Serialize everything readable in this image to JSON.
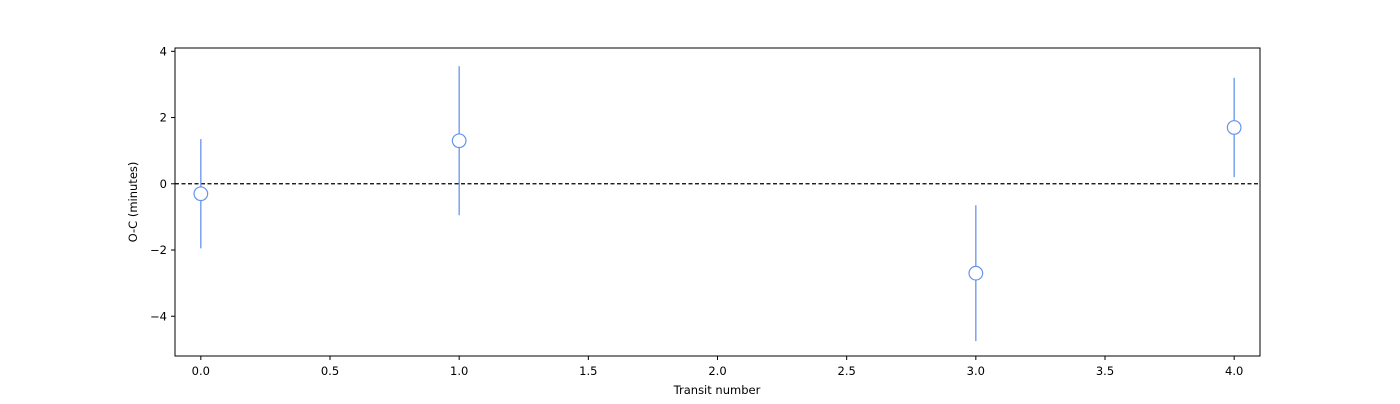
{
  "chart_data": {
    "type": "scatter",
    "title": "",
    "xlabel": "Transit number",
    "ylabel": "O-C (minutes)",
    "xlim": [
      -0.1,
      4.1
    ],
    "ylim": [
      -5.2,
      4.1
    ],
    "x_ticks": [
      0.0,
      0.5,
      1.0,
      1.5,
      2.0,
      2.5,
      3.0,
      3.5,
      4.0
    ],
    "x_tick_labels": [
      "0.0",
      "0.5",
      "1.0",
      "1.5",
      "2.0",
      "2.5",
      "3.0",
      "3.5",
      "4.0"
    ],
    "y_ticks": [
      -4,
      -2,
      0,
      2,
      4
    ],
    "y_tick_labels": [
      "−4",
      "−2",
      "0",
      "2",
      "4"
    ],
    "grid": false,
    "reference_line": {
      "y": 0,
      "style": "dashed",
      "color": "#000000"
    },
    "marker_color": "#6495ed",
    "marker_face": "#ffffff",
    "series": [
      {
        "x": [
          0,
          1,
          2,
          3,
          4
        ],
        "y": [
          -0.3,
          1.3,
          null,
          -2.7,
          1.7
        ],
        "y_err": [
          1.65,
          2.25,
          null,
          2.05,
          1.5
        ]
      }
    ]
  }
}
